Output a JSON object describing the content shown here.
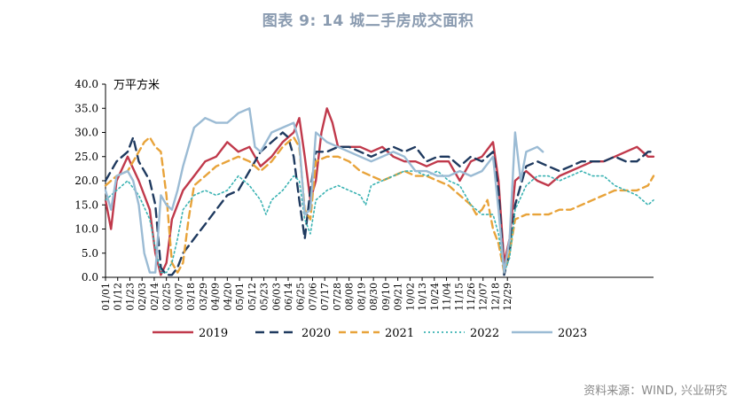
{
  "title": "图表 9:  14 城二手房成交面积",
  "source": "资料来源：WIND, 兴业研究",
  "chart_data": {
    "type": "line",
    "unit_label": "万平方米",
    "ylim": [
      0,
      40
    ],
    "y_ticks": [
      "40.0",
      "35.0",
      "30.0",
      "25.0",
      "20.0",
      "15.0",
      "10.0",
      "5.0",
      "0.0"
    ],
    "x_ticks": [
      "01/01",
      "01/12",
      "01/23",
      "02/03",
      "02/14",
      "02/25",
      "03/07",
      "03/18",
      "03/29",
      "04/09",
      "04/20",
      "05/01",
      "05/12",
      "05/23",
      "06/03",
      "06/14",
      "06/25",
      "07/06",
      "07/17",
      "07/28",
      "08/08",
      "08/19",
      "08/30",
      "09/10",
      "09/21",
      "10/02",
      "10/13",
      "10/24",
      "11/04",
      "11/15",
      "11/26",
      "12/07",
      "12/18",
      "12/29"
    ],
    "grid": false,
    "legend_position": "bottom",
    "series": [
      {
        "name": "2019",
        "color": "#C0394B",
        "dash": "solid",
        "points": [
          [
            1,
            16
          ],
          [
            6,
            10
          ],
          [
            11,
            20
          ],
          [
            21,
            25
          ],
          [
            31,
            20
          ],
          [
            41,
            14
          ],
          [
            46,
            5
          ],
          [
            51,
            0.5
          ],
          [
            56,
            3
          ],
          [
            61,
            12
          ],
          [
            71,
            18
          ],
          [
            81,
            21
          ],
          [
            91,
            24
          ],
          [
            101,
            25
          ],
          [
            111,
            28
          ],
          [
            121,
            26
          ],
          [
            131,
            27
          ],
          [
            141,
            23
          ],
          [
            151,
            25
          ],
          [
            161,
            28
          ],
          [
            171,
            30
          ],
          [
            176,
            33
          ],
          [
            181,
            25
          ],
          [
            186,
            16
          ],
          [
            191,
            20
          ],
          [
            196,
            30
          ],
          [
            201,
            35
          ],
          [
            206,
            32
          ],
          [
            211,
            27
          ],
          [
            221,
            27
          ],
          [
            231,
            27
          ],
          [
            241,
            26
          ],
          [
            251,
            27
          ],
          [
            261,
            25
          ],
          [
            271,
            24
          ],
          [
            281,
            24
          ],
          [
            291,
            23
          ],
          [
            301,
            24
          ],
          [
            311,
            24
          ],
          [
            321,
            20
          ],
          [
            331,
            24
          ],
          [
            341,
            25
          ],
          [
            351,
            28
          ],
          [
            356,
            20
          ],
          [
            361,
            3
          ],
          [
            366,
            8
          ],
          [
            371,
            20
          ],
          [
            381,
            22
          ],
          [
            391,
            20
          ],
          [
            401,
            19
          ],
          [
            411,
            21
          ],
          [
            421,
            22
          ],
          [
            431,
            23
          ],
          [
            441,
            24
          ],
          [
            451,
            24
          ],
          [
            461,
            25
          ],
          [
            471,
            26
          ],
          [
            481,
            27
          ],
          [
            491,
            25
          ],
          [
            496,
            25
          ]
        ]
      },
      {
        "name": "2020",
        "color": "#1F3A5F",
        "dash": "10,6",
        "points": [
          [
            1,
            20
          ],
          [
            11,
            24
          ],
          [
            21,
            26
          ],
          [
            26,
            29
          ],
          [
            31,
            24
          ],
          [
            41,
            20
          ],
          [
            46,
            15
          ],
          [
            51,
            2
          ],
          [
            56,
            0.5
          ],
          [
            61,
            0.5
          ],
          [
            66,
            2
          ],
          [
            71,
            5
          ],
          [
            81,
            8
          ],
          [
            91,
            11
          ],
          [
            101,
            14
          ],
          [
            111,
            17
          ],
          [
            121,
            18
          ],
          [
            131,
            22
          ],
          [
            141,
            26
          ],
          [
            151,
            28
          ],
          [
            161,
            30
          ],
          [
            166,
            29
          ],
          [
            171,
            25
          ],
          [
            176,
            16
          ],
          [
            181,
            8
          ],
          [
            186,
            18
          ],
          [
            191,
            26
          ],
          [
            201,
            26
          ],
          [
            211,
            27
          ],
          [
            221,
            27
          ],
          [
            231,
            26
          ],
          [
            241,
            25
          ],
          [
            251,
            26
          ],
          [
            261,
            27
          ],
          [
            271,
            26
          ],
          [
            281,
            27
          ],
          [
            291,
            24
          ],
          [
            301,
            25
          ],
          [
            311,
            25
          ],
          [
            321,
            23
          ],
          [
            331,
            25
          ],
          [
            341,
            24
          ],
          [
            351,
            26
          ],
          [
            356,
            18
          ],
          [
            361,
            0.5
          ],
          [
            366,
            5
          ],
          [
            371,
            15
          ],
          [
            381,
            23
          ],
          [
            391,
            24
          ],
          [
            401,
            23
          ],
          [
            411,
            22
          ],
          [
            421,
            23
          ],
          [
            431,
            24
          ],
          [
            441,
            24
          ],
          [
            451,
            24
          ],
          [
            461,
            25
          ],
          [
            471,
            24
          ],
          [
            481,
            24
          ],
          [
            491,
            26
          ],
          [
            496,
            26
          ]
        ]
      },
      {
        "name": "2021",
        "color": "#E8A33A",
        "dash": "8,5",
        "points": [
          [
            1,
            19
          ],
          [
            11,
            21
          ],
          [
            21,
            22
          ],
          [
            31,
            26
          ],
          [
            36,
            28
          ],
          [
            41,
            29
          ],
          [
            46,
            27
          ],
          [
            51,
            26
          ],
          [
            56,
            17
          ],
          [
            61,
            3
          ],
          [
            66,
            1
          ],
          [
            71,
            3
          ],
          [
            76,
            12
          ],
          [
            81,
            19
          ],
          [
            91,
            21
          ],
          [
            101,
            23
          ],
          [
            111,
            24
          ],
          [
            121,
            25
          ],
          [
            131,
            24
          ],
          [
            141,
            22
          ],
          [
            151,
            24
          ],
          [
            161,
            27
          ],
          [
            171,
            29
          ],
          [
            176,
            27
          ],
          [
            181,
            14
          ],
          [
            186,
            12
          ],
          [
            191,
            24
          ],
          [
            201,
            25
          ],
          [
            211,
            25
          ],
          [
            221,
            24
          ],
          [
            231,
            22
          ],
          [
            241,
            21
          ],
          [
            251,
            20
          ],
          [
            261,
            21
          ],
          [
            271,
            22
          ],
          [
            281,
            21
          ],
          [
            291,
            21
          ],
          [
            301,
            20
          ],
          [
            311,
            19
          ],
          [
            321,
            17
          ],
          [
            331,
            15
          ],
          [
            336,
            13
          ],
          [
            341,
            14
          ],
          [
            346,
            16
          ],
          [
            351,
            10
          ],
          [
            356,
            7
          ],
          [
            361,
            1
          ],
          [
            366,
            5
          ],
          [
            371,
            12
          ],
          [
            381,
            13
          ],
          [
            391,
            13
          ],
          [
            401,
            13
          ],
          [
            411,
            14
          ],
          [
            421,
            14
          ],
          [
            431,
            15
          ],
          [
            441,
            16
          ],
          [
            451,
            17
          ],
          [
            461,
            18
          ],
          [
            471,
            18
          ],
          [
            481,
            18
          ],
          [
            491,
            19
          ],
          [
            496,
            21
          ]
        ]
      },
      {
        "name": "2022",
        "color": "#3BB3B3",
        "dash": "2,3",
        "points": [
          [
            1,
            16
          ],
          [
            11,
            18
          ],
          [
            21,
            20
          ],
          [
            31,
            17
          ],
          [
            41,
            12
          ],
          [
            46,
            6
          ],
          [
            51,
            1
          ],
          [
            56,
            1
          ],
          [
            61,
            3
          ],
          [
            66,
            8
          ],
          [
            71,
            14
          ],
          [
            81,
            17
          ],
          [
            91,
            18
          ],
          [
            101,
            17
          ],
          [
            111,
            18
          ],
          [
            121,
            21
          ],
          [
            131,
            19
          ],
          [
            141,
            16
          ],
          [
            146,
            13
          ],
          [
            151,
            16
          ],
          [
            161,
            18
          ],
          [
            171,
            21
          ],
          [
            176,
            20
          ],
          [
            181,
            12
          ],
          [
            186,
            9
          ],
          [
            191,
            16
          ],
          [
            201,
            18
          ],
          [
            211,
            19
          ],
          [
            221,
            18
          ],
          [
            231,
            17
          ],
          [
            236,
            15
          ],
          [
            241,
            19
          ],
          [
            251,
            20
          ],
          [
            261,
            21
          ],
          [
            271,
            22
          ],
          [
            281,
            22
          ],
          [
            291,
            21
          ],
          [
            301,
            22
          ],
          [
            311,
            20
          ],
          [
            321,
            19
          ],
          [
            331,
            15
          ],
          [
            341,
            13
          ],
          [
            351,
            13
          ],
          [
            356,
            9
          ],
          [
            361,
            1
          ],
          [
            366,
            4
          ],
          [
            371,
            14
          ],
          [
            381,
            19
          ],
          [
            391,
            21
          ],
          [
            401,
            21
          ],
          [
            411,
            20
          ],
          [
            421,
            21
          ],
          [
            431,
            22
          ],
          [
            441,
            21
          ],
          [
            451,
            21
          ],
          [
            461,
            19
          ],
          [
            471,
            18
          ],
          [
            481,
            17
          ],
          [
            491,
            15
          ],
          [
            496,
            16
          ]
        ]
      },
      {
        "name": "2023",
        "color": "#9BBBD4",
        "dash": "solid",
        "points": [
          [
            1,
            18
          ],
          [
            6,
            14
          ],
          [
            11,
            21
          ],
          [
            21,
            22
          ],
          [
            26,
            20
          ],
          [
            31,
            15
          ],
          [
            36,
            5
          ],
          [
            41,
            1
          ],
          [
            46,
            1
          ],
          [
            51,
            17
          ],
          [
            56,
            15
          ],
          [
            61,
            14
          ],
          [
            66,
            18
          ],
          [
            71,
            23
          ],
          [
            81,
            31
          ],
          [
            91,
            33
          ],
          [
            101,
            32
          ],
          [
            111,
            32
          ],
          [
            121,
            34
          ],
          [
            131,
            35
          ],
          [
            136,
            27
          ],
          [
            141,
            26
          ],
          [
            151,
            30
          ],
          [
            161,
            31
          ],
          [
            171,
            32
          ],
          [
            176,
            28
          ],
          [
            181,
            13
          ],
          [
            186,
            14
          ],
          [
            191,
            30
          ],
          [
            201,
            28
          ],
          [
            211,
            27
          ],
          [
            221,
            26
          ],
          [
            231,
            25
          ],
          [
            241,
            24
          ],
          [
            251,
            25
          ],
          [
            261,
            26
          ],
          [
            271,
            25
          ],
          [
            281,
            22
          ],
          [
            291,
            22
          ],
          [
            301,
            21
          ],
          [
            311,
            21
          ],
          [
            321,
            22
          ],
          [
            331,
            21
          ],
          [
            341,
            22
          ],
          [
            351,
            25
          ],
          [
            356,
            14
          ],
          [
            361,
            1
          ],
          [
            366,
            8
          ],
          [
            371,
            30
          ],
          [
            376,
            20
          ],
          [
            381,
            26
          ],
          [
            391,
            27
          ],
          [
            396,
            26
          ]
        ]
      }
    ]
  }
}
